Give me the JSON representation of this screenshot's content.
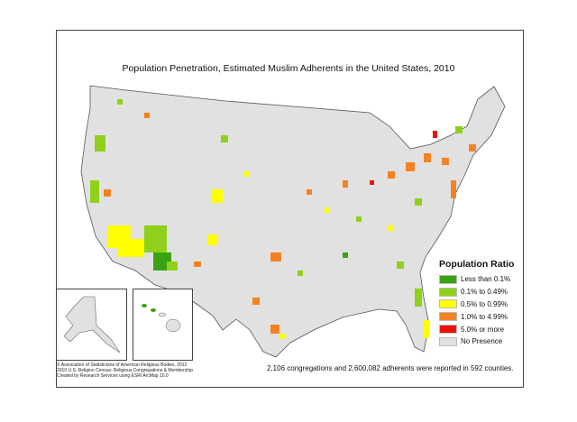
{
  "title": "Population Penetration, Estimated Muslim Adherents in the United States, 2010",
  "legend": {
    "title": "Population Ratio",
    "items": [
      {
        "label": "Less than 0.1%",
        "color": "#3aa312"
      },
      {
        "label": "0.1% to 0.49%",
        "color": "#8fd11a"
      },
      {
        "label": "0.5% to 0.99%",
        "color": "#ffff00"
      },
      {
        "label": "1.0% to 4.99%",
        "color": "#f58220"
      },
      {
        "label": "5.0% or more",
        "color": "#ee1111"
      },
      {
        "label": "No Presence",
        "color": "#e1e1e1"
      }
    ]
  },
  "summary": "2,106 congregations and 2,600,082 adherents were reported in 592 counties.",
  "credits": [
    "© Association of Statisticians of American Religious Bodies, 2012",
    "2010 U.S. Religion Census: Religious Congregations & Membership",
    "Created by Research Services using ESRI ArcMap 10.0"
  ]
}
